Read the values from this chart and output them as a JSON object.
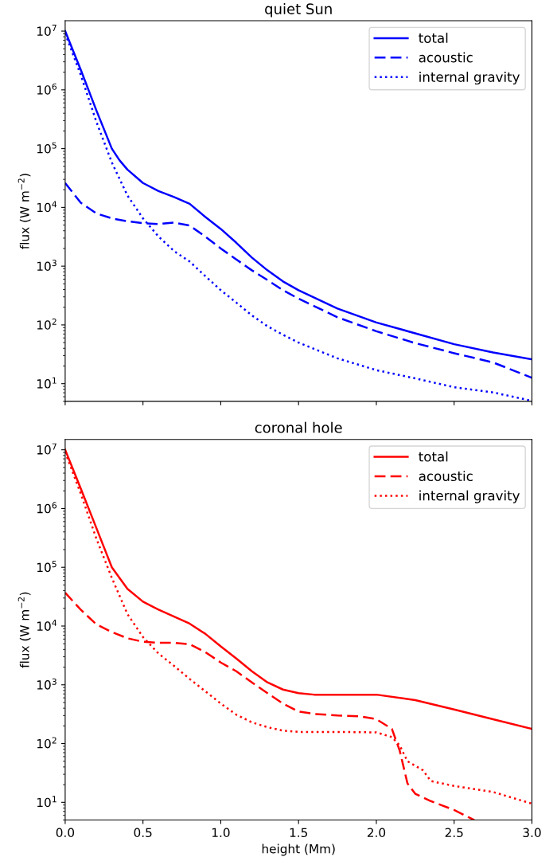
{
  "chart_data": [
    {
      "type": "line",
      "title": "quiet Sun",
      "ylabel": "flux (W m$^{−2}$)",
      "log": "y",
      "legend": "top right",
      "grid": false,
      "tick_labels": "y",
      "xlim": [
        0,
        3
      ],
      "xticks": [
        0,
        0.5,
        1,
        1.5,
        2,
        2.5,
        3
      ],
      "ylim": [
        5,
        15000000
      ],
      "yticks": [
        {
          "value": 10,
          "label": "10$^{1}$"
        },
        {
          "value": 100,
          "label": "10$^{2}$"
        },
        {
          "value": 1000,
          "label": "10$^{3}$"
        },
        {
          "value": 10000,
          "label": "10$^{4}$"
        },
        {
          "value": 100000,
          "label": "10$^{5}$"
        },
        {
          "value": 1000000,
          "label": "10$^{6}$"
        },
        {
          "value": 10000000,
          "label": "10$^{7}$"
        }
      ],
      "series": [
        {
          "name": "total",
          "color": "#0000ff",
          "line_style": "solid",
          "x": [
            0,
            0.1,
            0.2,
            0.3,
            0.35,
            0.4,
            0.5,
            0.6,
            0.7,
            0.8,
            0.9,
            1.0,
            1.1,
            1.2,
            1.3,
            1.4,
            1.5,
            1.75,
            2.0,
            2.25,
            2.5,
            2.75,
            3.0
          ],
          "values": [
            10000000,
            2200000,
            450000,
            100000,
            63000,
            44000,
            26000,
            19000,
            15000,
            11500,
            6900,
            4300,
            2500,
            1400,
            850,
            550,
            390,
            190,
            110,
            72,
            47,
            34,
            26
          ]
        },
        {
          "name": "acoustic",
          "color": "#0000ff",
          "line_style": "dashed",
          "x": [
            0,
            0.1,
            0.2,
            0.3,
            0.4,
            0.5,
            0.6,
            0.7,
            0.8,
            0.9,
            1.0,
            1.1,
            1.2,
            1.3,
            1.4,
            1.5,
            1.75,
            2.0,
            2.25,
            2.5,
            2.75,
            3.0
          ],
          "values": [
            26000,
            12000,
            7900,
            6500,
            5800,
            5400,
            5200,
            5500,
            4900,
            3200,
            2000,
            1300,
            850,
            580,
            390,
            280,
            135,
            78,
            49,
            33,
            23,
            12.6
          ]
        },
        {
          "name": "internal gravity",
          "color": "#0000ff",
          "line_style": "dotted",
          "x": [
            0,
            0.1,
            0.2,
            0.3,
            0.4,
            0.5,
            0.6,
            0.7,
            0.8,
            0.9,
            1.0,
            1.1,
            1.2,
            1.3,
            1.4,
            1.5,
            1.75,
            2.0,
            2.25,
            2.5,
            2.75,
            3.0
          ],
          "values": [
            9100000,
            1800000,
            290000,
            58000,
            16000,
            6500,
            3200,
            1800,
            1200,
            680,
            390,
            240,
            145,
            95,
            68,
            50,
            27,
            17,
            12.3,
            8.7,
            7.1,
            5.1
          ]
        }
      ]
    },
    {
      "type": "line",
      "title": "coronal hole",
      "xlabel": "height (Mm)",
      "ylabel": "flux (W m$^{−2}$)",
      "log": "y",
      "legend": "top right",
      "grid": false,
      "xlim": [
        0,
        3
      ],
      "xticks": [
        {
          "value": 0,
          "label": "0.0"
        },
        {
          "value": 0.5,
          "label": "0.5"
        },
        {
          "value": 1,
          "label": "1.0"
        },
        {
          "value": 1.5,
          "label": "1.5"
        },
        {
          "value": 2,
          "label": "2.0"
        },
        {
          "value": 2.5,
          "label": "2.5"
        },
        {
          "value": 3,
          "label": "3.0"
        }
      ],
      "ylim": [
        5,
        15000000
      ],
      "yticks": [
        {
          "value": 10,
          "label": "10$^{1}$"
        },
        {
          "value": 100,
          "label": "10$^{2}$"
        },
        {
          "value": 1000,
          "label": "10$^{3}$"
        },
        {
          "value": 10000,
          "label": "10$^{4}$"
        },
        {
          "value": 100000,
          "label": "10$^{5}$"
        },
        {
          "value": 1000000,
          "label": "10$^{6}$"
        },
        {
          "value": 10000000,
          "label": "10$^{7}$"
        }
      ],
      "series": [
        {
          "name": "total",
          "color": "#ff0000",
          "line_style": "solid",
          "x": [
            0,
            0.1,
            0.2,
            0.3,
            0.4,
            0.5,
            0.6,
            0.7,
            0.8,
            0.9,
            1.0,
            1.1,
            1.2,
            1.3,
            1.4,
            1.5,
            1.6,
            1.75,
            2.0,
            2.25,
            2.5,
            2.75,
            3.0
          ],
          "values": [
            10000000,
            2200000,
            470000,
            100000,
            43000,
            26000,
            19000,
            14500,
            11000,
            7400,
            4500,
            2800,
            1700,
            1100,
            830,
            720,
            680,
            680,
            680,
            550,
            380,
            260,
            178
          ]
        },
        {
          "name": "acoustic",
          "color": "#ff0000",
          "line_style": "dashed",
          "x": [
            0,
            0.1,
            0.2,
            0.3,
            0.4,
            0.5,
            0.6,
            0.7,
            0.8,
            0.9,
            1.0,
            1.1,
            1.2,
            1.3,
            1.4,
            1.5,
            1.6,
            1.75,
            1.9,
            2.0,
            2.1,
            2.15,
            2.2,
            2.25,
            2.35,
            2.5,
            2.63
          ],
          "values": [
            37000,
            19000,
            10700,
            7900,
            6200,
            5400,
            5200,
            5200,
            4900,
            3600,
            2400,
            1700,
            1100,
            720,
            480,
            350,
            320,
            300,
            290,
            260,
            178,
            76,
            21,
            14,
            10.5,
            7.4,
            5.0
          ]
        },
        {
          "name": "internal gravity",
          "color": "#ff0000",
          "line_style": "dotted",
          "x": [
            0,
            0.1,
            0.2,
            0.3,
            0.4,
            0.5,
            0.6,
            0.7,
            0.8,
            0.9,
            1.0,
            1.1,
            1.2,
            1.3,
            1.4,
            1.5,
            1.75,
            2.0,
            2.1,
            2.15,
            2.2,
            2.3,
            2.35,
            2.5,
            2.75,
            3.0
          ],
          "values": [
            9100000,
            1800000,
            310000,
            66000,
            16000,
            6500,
            3400,
            2100,
            1260,
            780,
            480,
            310,
            230,
            190,
            166,
            158,
            158,
            155,
            129,
            93,
            50,
            35,
            23,
            19,
            15,
            9.5
          ]
        }
      ]
    }
  ]
}
